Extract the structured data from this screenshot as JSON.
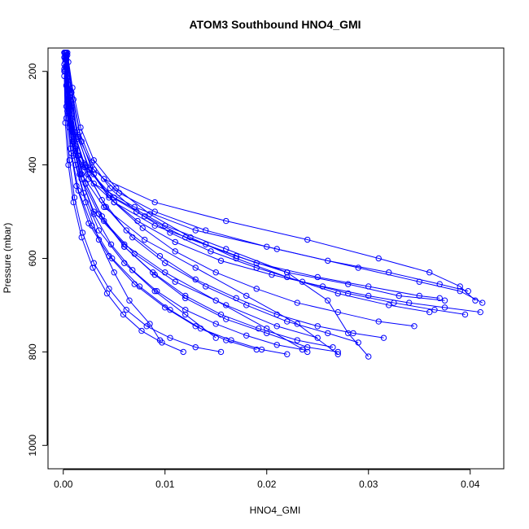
{
  "chart_data": {
    "type": "line",
    "title": "ATOM3 Southbound HNO4_GMI",
    "xlabel": "HNO4_GMI",
    "ylabel": "Pressure (mbar)",
    "xlim": [
      -0.0015,
      0.0433
    ],
    "ylim": [
      1050,
      150
    ],
    "y_reversed": true,
    "grid": false,
    "color": "#0000ff",
    "marker": "open-circle",
    "x_ticks": [
      {
        "value": 0.0,
        "label": "0.00"
      },
      {
        "value": 0.01,
        "label": "0.01"
      },
      {
        "value": 0.02,
        "label": "0.02"
      },
      {
        "value": 0.03,
        "label": "0.03"
      },
      {
        "value": 0.04,
        "label": "0.04"
      }
    ],
    "y_ticks": [
      {
        "value": 200,
        "label": "200"
      },
      {
        "value": 400,
        "label": "400"
      },
      {
        "value": 600,
        "label": "600"
      },
      {
        "value": 800,
        "label": "800"
      },
      {
        "value": 1000,
        "label": "1000"
      }
    ],
    "series": [
      {
        "x": [
          0.0002,
          0.0004,
          0.0008,
          0.0015,
          0.004,
          0.009,
          0.016,
          0.024,
          0.031,
          0.036,
          0.039,
          0.0405
        ],
        "y": [
          160,
          220,
          300,
          380,
          430,
          480,
          520,
          560,
          600,
          630,
          660,
          690
        ]
      },
      {
        "x": [
          0.0001,
          0.0003,
          0.0007,
          0.0014,
          0.003,
          0.007,
          0.013,
          0.021,
          0.029,
          0.035,
          0.039,
          0.0412
        ],
        "y": [
          170,
          230,
          310,
          380,
          440,
          490,
          540,
          580,
          620,
          650,
          670,
          695
        ]
      },
      {
        "x": [
          0.0003,
          0.0006,
          0.0011,
          0.002,
          0.005,
          0.01,
          0.016,
          0.022,
          0.026,
          0.028,
          0.03
        ],
        "y": [
          160,
          240,
          330,
          400,
          470,
          530,
          580,
          630,
          690,
          760,
          810
        ]
      },
      {
        "x": [
          0.0002,
          0.0005,
          0.001,
          0.0018,
          0.004,
          0.008,
          0.013,
          0.018,
          0.023,
          0.027
        ],
        "y": [
          180,
          260,
          340,
          420,
          490,
          560,
          620,
          680,
          740,
          805
        ]
      },
      {
        "x": [
          0.0001,
          0.0004,
          0.0009,
          0.0016,
          0.003,
          0.006,
          0.01,
          0.015,
          0.02,
          0.024
        ],
        "y": [
          160,
          250,
          350,
          420,
          500,
          570,
          630,
          690,
          750,
          800
        ]
      },
      {
        "x": [
          0.0002,
          0.0005,
          0.0012,
          0.0025,
          0.005,
          0.009,
          0.014,
          0.019,
          0.025,
          0.03,
          0.035,
          0.037
        ],
        "y": [
          170,
          280,
          370,
          430,
          480,
          530,
          570,
          610,
          640,
          660,
          680,
          685
        ]
      },
      {
        "x": [
          0.0003,
          0.0006,
          0.0012,
          0.0022,
          0.004,
          0.007,
          0.011,
          0.016,
          0.021,
          0.025
        ],
        "y": [
          190,
          270,
          360,
          440,
          520,
          590,
          650,
          700,
          745,
          770
        ]
      },
      {
        "x": [
          0.0002,
          0.0005,
          0.001,
          0.002,
          0.0035,
          0.006,
          0.009,
          0.012,
          0.015
        ],
        "y": [
          200,
          290,
          380,
          460,
          540,
          610,
          670,
          720,
          770
        ]
      },
      {
        "x": [
          0.0001,
          0.0003,
          0.0006,
          0.0012,
          0.0022,
          0.0035,
          0.005,
          0.0065,
          0.0085,
          0.0095
        ],
        "y": [
          160,
          230,
          320,
          400,
          480,
          560,
          630,
          690,
          740,
          775
        ]
      },
      {
        "x": [
          0.0002,
          0.0004,
          0.0009,
          0.0018,
          0.0035,
          0.006,
          0.009,
          0.012,
          0.016,
          0.02,
          0.024,
          0.027
        ],
        "y": [
          175,
          265,
          355,
          430,
          505,
          575,
          635,
          685,
          730,
          760,
          790,
          800
        ]
      },
      {
        "x": [
          0.0004,
          0.0008,
          0.0014,
          0.0025,
          0.0045,
          0.008,
          0.012,
          0.017,
          0.022,
          0.028,
          0.033,
          0.0375
        ],
        "y": [
          165,
          245,
          335,
          410,
          465,
          510,
          555,
          595,
          630,
          655,
          680,
          690
        ]
      },
      {
        "x": [
          0.0001,
          0.0003,
          0.0007,
          0.0013,
          0.0025,
          0.0045,
          0.007,
          0.01,
          0.013,
          0.016,
          0.019
        ],
        "y": [
          185,
          275,
          365,
          445,
          525,
          595,
          655,
          705,
          745,
          775,
          795
        ]
      },
      {
        "x": [
          0.0002,
          0.0006,
          0.0013,
          0.0024,
          0.0042,
          0.0068,
          0.01,
          0.014,
          0.018,
          0.022,
          0.026,
          0.029
        ],
        "y": [
          160,
          255,
          345,
          420,
          490,
          555,
          610,
          660,
          700,
          735,
          760,
          780
        ]
      },
      {
        "x": [
          0.0003,
          0.0007,
          0.0015,
          0.003,
          0.0055,
          0.009,
          0.014,
          0.02,
          0.026,
          0.032,
          0.037,
          0.0398
        ],
        "y": [
          170,
          250,
          340,
          410,
          460,
          500,
          540,
          575,
          605,
          630,
          655,
          670
        ]
      },
      {
        "x": [
          0.0001,
          0.0004,
          0.0008,
          0.0015,
          0.0028,
          0.0048,
          0.0075,
          0.0105,
          0.0135,
          0.0165,
          0.0195,
          0.022
        ],
        "y": [
          195,
          285,
          375,
          455,
          530,
          600,
          660,
          710,
          750,
          775,
          795,
          805
        ]
      },
      {
        "x": [
          0.0002,
          0.0005,
          0.0011,
          0.0021,
          0.0038,
          0.0062,
          0.0095,
          0.013,
          0.017,
          0.021,
          0.025,
          0.0285,
          0.0315
        ],
        "y": [
          160,
          240,
          330,
          405,
          475,
          540,
          595,
          645,
          685,
          720,
          745,
          760,
          770
        ]
      },
      {
        "x": [
          0.0005,
          0.001,
          0.0018,
          0.003,
          0.005,
          0.0078,
          0.011,
          0.015,
          0.019,
          0.023,
          0.027,
          0.031,
          0.0345
        ],
        "y": [
          180,
          260,
          350,
          420,
          480,
          535,
          585,
          630,
          665,
          695,
          715,
          735,
          745
        ]
      },
      {
        "x": [
          0.0001,
          0.0003,
          0.0006,
          0.0011,
          0.0019,
          0.003,
          0.0045,
          0.0062,
          0.0082,
          0.0105,
          0.013,
          0.0155
        ],
        "y": [
          200,
          300,
          390,
          470,
          545,
          610,
          665,
          710,
          745,
          770,
          790,
          800
        ]
      },
      {
        "x": [
          0.0003,
          0.0008,
          0.0016,
          0.0028,
          0.0046,
          0.0072,
          0.0105,
          0.0145,
          0.019,
          0.0235,
          0.028,
          0.0325,
          0.0365,
          0.0395
        ],
        "y": [
          165,
          245,
          330,
          395,
          450,
          500,
          545,
          585,
          620,
          650,
          675,
          695,
          710,
          720
        ]
      },
      {
        "x": [
          0.0002,
          0.0005,
          0.001,
          0.0018,
          0.003,
          0.0047,
          0.0068,
          0.0092,
          0.012,
          0.015,
          0.018,
          0.021,
          0.0235
        ],
        "y": [
          170,
          260,
          350,
          430,
          505,
          570,
          625,
          670,
          710,
          740,
          765,
          785,
          795
        ]
      },
      {
        "x": [
          0.0004,
          0.0009,
          0.0017,
          0.003,
          0.0052,
          0.0085,
          0.0125,
          0.017,
          0.022,
          0.027,
          0.032,
          0.036
        ],
        "y": [
          160,
          235,
          320,
          390,
          450,
          505,
          555,
          600,
          640,
          675,
          700,
          715
        ]
      },
      {
        "x": [
          0.0001,
          0.0002,
          0.0005,
          0.001,
          0.0018,
          0.0029,
          0.0043,
          0.0059,
          0.0077,
          0.0097,
          0.0118
        ],
        "y": [
          210,
          310,
          400,
          480,
          555,
          620,
          675,
          720,
          755,
          780,
          800
        ]
      },
      {
        "x": [
          0.0003,
          0.0007,
          0.0014,
          0.0026,
          0.0045,
          0.0073,
          0.011,
          0.0155,
          0.0205,
          0.0255,
          0.03,
          0.034,
          0.0375,
          0.041
        ],
        "y": [
          175,
          255,
          340,
          410,
          470,
          520,
          565,
          605,
          635,
          660,
          680,
          695,
          705,
          715
        ]
      },
      {
        "x": [
          0.0002,
          0.0006,
          0.0012,
          0.0022,
          0.0038,
          0.006,
          0.0088,
          0.012,
          0.0155,
          0.0192,
          0.023,
          0.0265
        ],
        "y": [
          190,
          280,
          365,
          440,
          510,
          575,
          630,
          680,
          720,
          750,
          775,
          790
        ]
      }
    ]
  }
}
